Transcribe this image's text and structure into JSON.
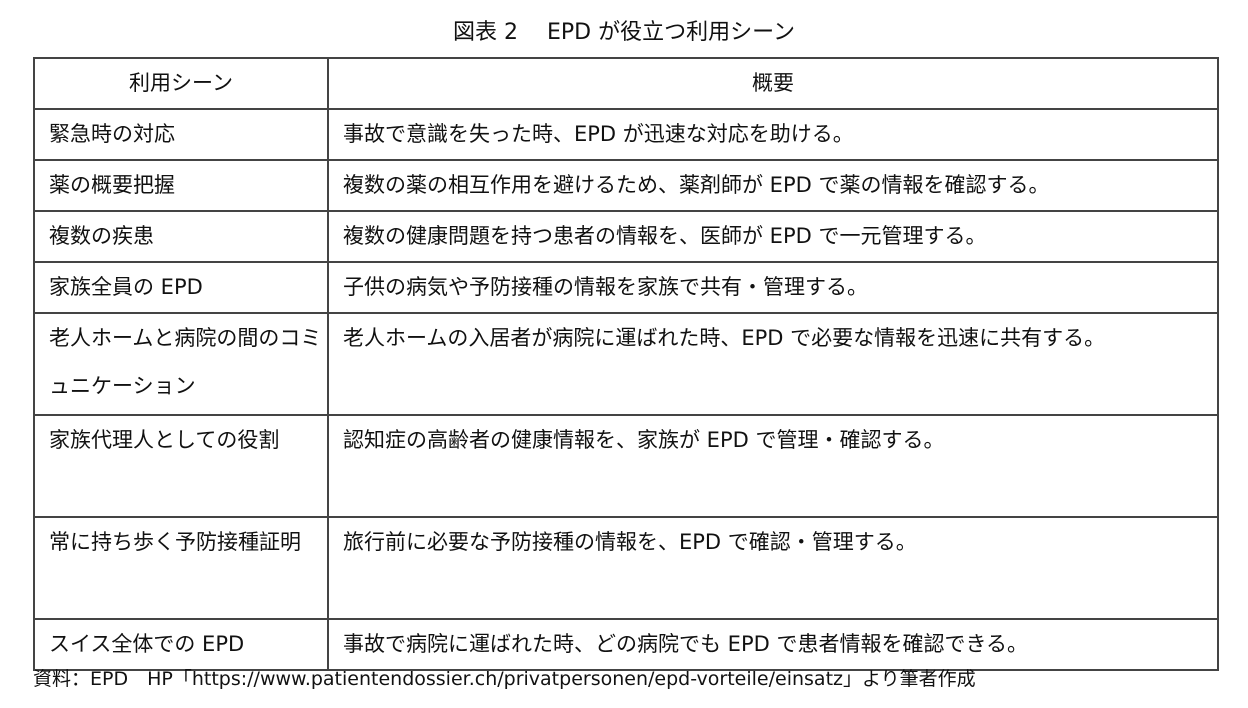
{
  "title": "図表 2　 EPD が役立つ利用シーン",
  "table": {
    "headers": [
      "利用シーン",
      "概要"
    ],
    "rows": [
      {
        "scene": "緊急時の対応",
        "summary": "事故で意識を失った時、EPD が迅速な対応を助ける。"
      },
      {
        "scene": "薬の概要把握",
        "summary": "複数の薬の相互作用を避けるため、薬剤師が EPD で薬の情報を確認する。"
      },
      {
        "scene": "複数の疾患",
        "summary": "複数の健康問題を持つ患者の情報を、医師が EPD で一元管理する。"
      },
      {
        "scene": "家族全員の EPD",
        "summary": "子供の病気や予防接種の情報を家族で共有・管理する。"
      },
      {
        "scene": "老人ホームと病院の間のコミュニケーション",
        "summary": "老人ホームの入居者が病院に運ばれた時、EPD で必要な情報を迅速に共有する。"
      },
      {
        "scene": "家族代理人としての役割",
        "summary": "認知症の高齢者の健康情報を、家族が EPD で管理・確認する。"
      },
      {
        "scene": "常に持ち歩く予防接種証明",
        "summary": "旅行前に必要な予防接種の情報を、EPD で確認・管理する。"
      },
      {
        "scene": "スイス全体での EPD",
        "summary": "事故で病院に運ばれた時、どの病院でも EPD で患者情報を確認できる。"
      }
    ]
  },
  "source": "資料：EPD　HP「https://www.patientendossier.ch/privatpersonen/epd-vorteile/einsatz」より筆者作成"
}
